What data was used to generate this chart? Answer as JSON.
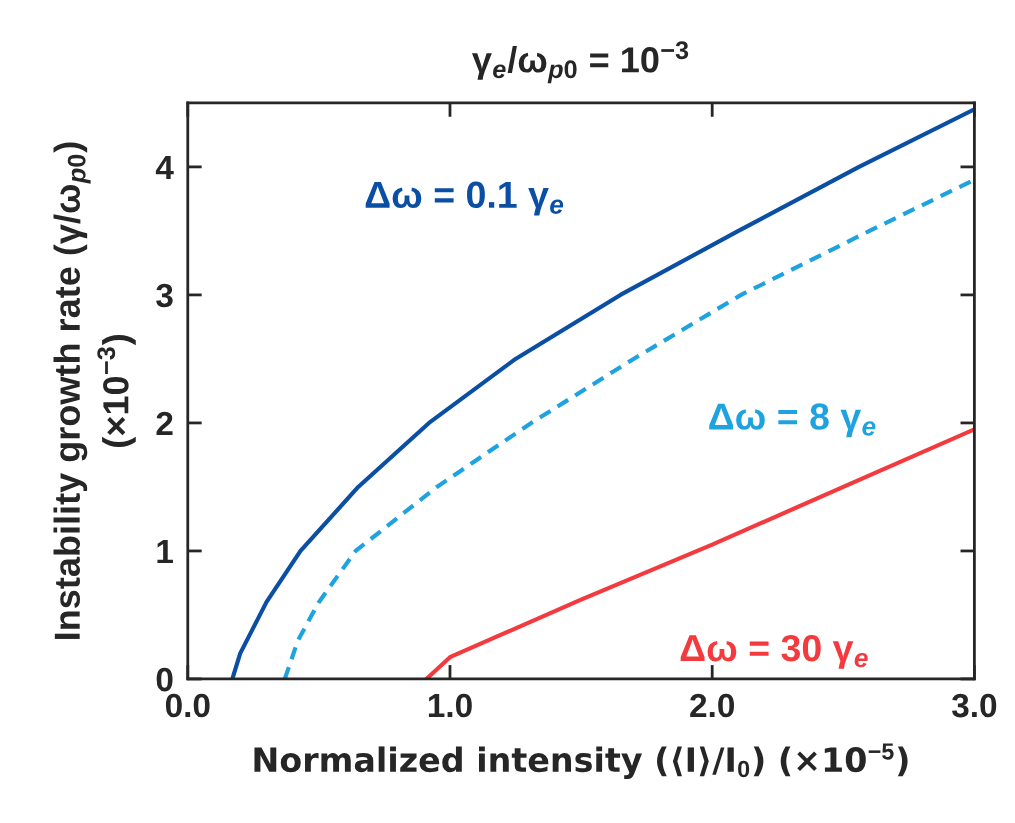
{
  "chart_data": {
    "type": "line",
    "title": "γ$_{e}$/ω$_{p0}$ = 10$^{−3}$",
    "xlabel": "Normalized intensity (⟨I⟩/I$_{0}$) (×10$^{−5}$)",
    "ylabel": "Instability growth rate (γ/ω$_{p0}$)\n(×10$^{−3}$)",
    "xlim": [
      0,
      3
    ],
    "ylim": [
      0,
      4.5
    ],
    "xticks": [
      {
        "value": 0,
        "label": "0.0"
      },
      {
        "value": 1,
        "label": "1.0"
      },
      {
        "value": 2,
        "label": "2.0"
      },
      {
        "value": 3,
        "label": "3.0"
      }
    ],
    "yticks": [
      0,
      1,
      2,
      3,
      4
    ],
    "grid": false,
    "legend": false,
    "series": [
      {
        "name": "Δω = 0.1 γ$_{e}$",
        "color": "#0a4fa3",
        "line_style": "solid",
        "x": [
          0.17,
          0.2,
          0.3,
          0.43,
          0.65,
          0.92,
          1.25,
          1.65,
          2.1,
          2.56,
          3.0
        ],
        "values": [
          0,
          0.2,
          0.6,
          1.0,
          1.5,
          2.0,
          2.5,
          3.0,
          3.5,
          4.0,
          4.45
        ]
      },
      {
        "name": "Δω = 8 γ$_{e}$",
        "color": "#1ea3e0",
        "line_style": "dashed",
        "x": [
          0.37,
          0.42,
          0.5,
          0.64,
          0.95,
          1.31,
          1.7,
          2.11,
          2.6,
          3.0
        ],
        "values": [
          0,
          0.3,
          0.6,
          1.0,
          1.5,
          2.0,
          2.5,
          3.0,
          3.5,
          3.9
        ]
      },
      {
        "name": "Δω = 30 γ$_{e}$",
        "color": "#f23a3f",
        "line_style": "solid",
        "x": [
          0.91,
          1.0,
          1.5,
          2.0,
          2.5,
          3.0
        ],
        "values": [
          0,
          0.17,
          0.62,
          1.05,
          1.5,
          1.95
        ]
      }
    ]
  }
}
